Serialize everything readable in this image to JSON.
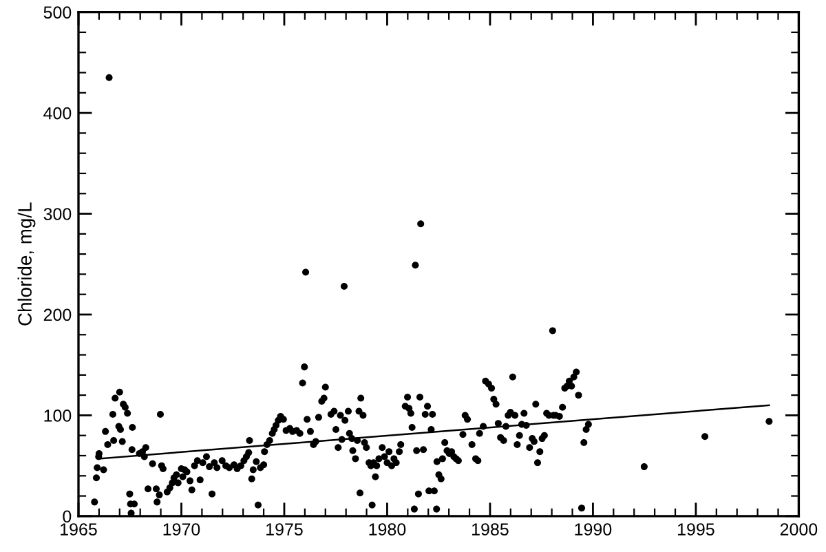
{
  "chart_data": {
    "type": "scatter",
    "ylabel": "Chloride, mg/L",
    "xlim": [
      1965,
      2000
    ],
    "ylim": [
      0,
      500
    ],
    "xticks": [
      1965,
      {
        "value": 1966,
        "label": null
      },
      {
        "value": 1967,
        "label": null
      },
      {
        "value": 1968,
        "label": null
      },
      {
        "value": 1969,
        "label": null
      },
      1970,
      {
        "value": 1971,
        "label": null
      },
      {
        "value": 1972,
        "label": null
      },
      {
        "value": 1973,
        "label": null
      },
      {
        "value": 1974,
        "label": null
      },
      1975,
      {
        "value": 1976,
        "label": null
      },
      {
        "value": 1977,
        "label": null
      },
      {
        "value": 1978,
        "label": null
      },
      {
        "value": 1979,
        "label": null
      },
      1980,
      {
        "value": 1981,
        "label": null
      },
      {
        "value": 1982,
        "label": null
      },
      {
        "value": 1983,
        "label": null
      },
      {
        "value": 1984,
        "label": null
      },
      1985,
      {
        "value": 1986,
        "label": null
      },
      {
        "value": 1987,
        "label": null
      },
      {
        "value": 1988,
        "label": null
      },
      {
        "value": 1989,
        "label": null
      },
      1990,
      {
        "value": 1991,
        "label": null
      },
      {
        "value": 1992,
        "label": null
      },
      {
        "value": 1993,
        "label": null
      },
      {
        "value": 1994,
        "label": null
      },
      1995,
      {
        "value": 1996,
        "label": null
      },
      {
        "value": 1997,
        "label": null
      },
      {
        "value": 1998,
        "label": null
      },
      {
        "value": 1999,
        "label": null
      },
      2000
    ],
    "yticks": [
      0,
      {
        "value": 20,
        "label": null
      },
      {
        "value": 40,
        "label": null
      },
      {
        "value": 60,
        "label": null
      },
      {
        "value": 80,
        "label": null
      },
      100,
      {
        "value": 120,
        "label": null
      },
      {
        "value": 140,
        "label": null
      },
      {
        "value": 160,
        "label": null
      },
      {
        "value": 180,
        "label": null
      },
      200,
      {
        "value": 220,
        "label": null
      },
      {
        "value": 240,
        "label": null
      },
      {
        "value": 260,
        "label": null
      },
      {
        "value": 280,
        "label": null
      },
      300,
      {
        "value": 320,
        "label": null
      },
      {
        "value": 340,
        "label": null
      },
      {
        "value": 360,
        "label": null
      },
      {
        "value": 380,
        "label": null
      },
      400,
      {
        "value": 420,
        "label": null
      },
      {
        "value": 440,
        "label": null
      },
      {
        "value": 460,
        "label": null
      },
      {
        "value": 480,
        "label": null
      },
      500
    ],
    "marker": "circle",
    "series": [
      {
        "color": "#000000",
        "x": [
          1965.78,
          1965.87,
          1965.91,
          1965.98,
          1966.0,
          1966.22,
          1966.31,
          1966.42,
          1966.67,
          1966.71,
          1966.78,
          1967.0,
          1966.96,
          1967.04,
          1967.13,
          1967.18,
          1967.27,
          1967.38,
          1967.49,
          1967.53,
          1967.71,
          1967.56,
          1967.6,
          1967.62,
          1967.96,
          1968.11,
          1968.2,
          1968.27,
          1968.38,
          1968.6,
          1968.78,
          1968.82,
          1968.93,
          1968.98,
          1969.04,
          1969.11,
          1969.31,
          1969.44,
          1969.56,
          1969.64,
          1969.76,
          1969.84,
          1970.0,
          1970.07,
          1970.16,
          1970.27,
          1970.42,
          1970.51,
          1970.64,
          1970.78,
          1970.91,
          1971.04,
          1971.22,
          1971.36,
          1971.49,
          1971.6,
          1971.73,
          1971.98,
          1972.16,
          1972.33,
          1972.56,
          1972.71,
          1972.89,
          1973.04,
          1973.16,
          1973.27,
          1973.31,
          1973.42,
          1973.49,
          1973.64,
          1973.73,
          1973.84,
          1974.0,
          1974.04,
          1974.16,
          1974.29,
          1974.42,
          1974.51,
          1974.6,
          1974.71,
          1974.82,
          1974.96,
          1975.09,
          1975.27,
          1975.4,
          1975.6,
          1975.76,
          1975.89,
          1975.98,
          1976.11,
          1976.27,
          1976.42,
          1976.53,
          1976.67,
          1976.82,
          1976.93,
          1977.0,
          1977.27,
          1977.42,
          1966.49,
          1976.04,
          1977.51,
          1977.62,
          1977.73,
          1977.8,
          1977.91,
          1977.95,
          1978.11,
          1978.17,
          1978.28,
          1978.33,
          1978.46,
          1978.55,
          1978.63,
          1978.72,
          1978.68,
          1978.83,
          1978.9,
          1978.99,
          1979.12,
          1979.21,
          1979.27,
          1979.34,
          1979.43,
          1979.49,
          1979.6,
          1979.76,
          1979.87,
          1980.0,
          1980.09,
          1980.22,
          1980.33,
          1980.44,
          1980.59,
          1980.66,
          1980.88,
          1980.99,
          1981.06,
          1981.15,
          1981.21,
          1981.32,
          1981.37,
          1981.43,
          1981.52,
          1981.59,
          1981.63,
          1981.76,
          1981.85,
          1981.96,
          1982.03,
          1982.14,
          1982.2,
          1982.29,
          1982.4,
          1982.42,
          1982.51,
          1982.62,
          1982.69,
          1982.8,
          1982.91,
          1983.02,
          1983.13,
          1983.24,
          1983.35,
          1983.46,
          1983.68,
          1983.79,
          1983.9,
          1984.12,
          1984.3,
          1984.41,
          1984.49,
          1984.67,
          1984.78,
          1984.93,
          1985.07,
          1985.18,
          1985.29,
          1985.4,
          1985.51,
          1985.66,
          1985.77,
          1985.88,
          1985.99,
          1986.1,
          1986.21,
          1986.32,
          1986.43,
          1986.54,
          1986.65,
          1986.76,
          1986.92,
          1987.05,
          1987.14,
          1987.22,
          1987.31,
          1987.42,
          1987.53,
          1987.64,
          1987.75,
          1987.86,
          1988.04,
          1988.08,
          1988.19,
          1988.37,
          1988.52,
          1988.63,
          1988.74,
          1988.85,
          1988.96,
          1989.07,
          1989.19,
          1989.3,
          1989.45,
          1989.56,
          1989.67,
          1989.78,
          1992.49,
          1995.44,
          1998.56
        ],
        "values": [
          14,
          38,
          48,
          59,
          62,
          46,
          84,
          71,
          101,
          75,
          117,
          123,
          89,
          86,
          74,
          111,
          108,
          102,
          22,
          12,
          12,
          3,
          66,
          88,
          62,
          64,
          59,
          68,
          27,
          52,
          27,
          14,
          21,
          101,
          50,
          47,
          24,
          28,
          33,
          38,
          41,
          33,
          47,
          39,
          46,
          44,
          35,
          26,
          50,
          55,
          36,
          53,
          59,
          49,
          22,
          53,
          48,
          55,
          50,
          48,
          51,
          47,
          50,
          55,
          59,
          63,
          75,
          37,
          46,
          54,
          11,
          48,
          51,
          64,
          71,
          75,
          82,
          86,
          90,
          95,
          99,
          96,
          85,
          87,
          84,
          85,
          82,
          132,
          148,
          96,
          84,
          71,
          74,
          98,
          114,
          117,
          128,
          101,
          104,
          435,
          242,
          86,
          68,
          100,
          76,
          228,
          95,
          104,
          82,
          77,
          65,
          57,
          75,
          104,
          117,
          23,
          100,
          73,
          68,
          53,
          50,
          11,
          53,
          39,
          50,
          57,
          68,
          59,
          53,
          64,
          50,
          57,
          53,
          64,
          71,
          109,
          118,
          107,
          102,
          88,
          7,
          249,
          65,
          22,
          118,
          290,
          66,
          101,
          109,
          25,
          86,
          101,
          25,
          7,
          54,
          41,
          37,
          57,
          73,
          65,
          62,
          64,
          59,
          57,
          55,
          81,
          100,
          96,
          71,
          57,
          55,
          82,
          89,
          134,
          131,
          127,
          116,
          111,
          92,
          78,
          75,
          89,
          100,
          103,
          138,
          100,
          71,
          80,
          91,
          102,
          90,
          68,
          77,
          74,
          111,
          53,
          64,
          77,
          80,
          102,
          100,
          184,
          100,
          100,
          99,
          108,
          127,
          129,
          134,
          129,
          138,
          143,
          120,
          8,
          73,
          86,
          91,
          49,
          79,
          94
        ]
      },
      {
        "type": "line",
        "color": "#000000",
        "marker": "none",
        "x": [
          1966.0,
          1998.56
        ],
        "values": [
          57,
          110
        ]
      }
    ]
  }
}
